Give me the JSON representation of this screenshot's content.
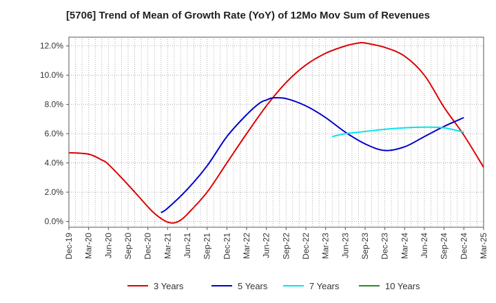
{
  "chart_data": {
    "type": "line",
    "title": "[5706]  Trend of Mean of Growth Rate (YoY) of 12Mo Mov Sum of Revenues",
    "xlabel": "",
    "ylabel": "",
    "x_ticks": [
      "Dec-19",
      "Mar-20",
      "Jun-20",
      "Sep-20",
      "Dec-20",
      "Mar-21",
      "Jun-21",
      "Sep-21",
      "Dec-21",
      "Mar-22",
      "Jun-22",
      "Sep-22",
      "Dec-22",
      "Mar-23",
      "Jun-23",
      "Sep-23",
      "Dec-23",
      "Mar-24",
      "Jun-24",
      "Sep-24",
      "Dec-24",
      "Mar-25"
    ],
    "y_ticks": [
      "0.0%",
      "2.0%",
      "4.0%",
      "6.0%",
      "8.0%",
      "10.0%",
      "12.0%"
    ],
    "y_tick_values": [
      0,
      2,
      4,
      6,
      8,
      10,
      12
    ],
    "ylim": [
      -0.4,
      12.6
    ],
    "x_index_range": [
      0,
      63
    ],
    "grid": true,
    "legend_position": "bottom",
    "series": [
      {
        "name": "3 Years",
        "color": "#dd0000",
        "points": [
          [
            0,
            4.7
          ],
          [
            3,
            4.6
          ],
          [
            5,
            4.2
          ],
          [
            6,
            3.9
          ],
          [
            9,
            2.5
          ],
          [
            12,
            1.0
          ],
          [
            13,
            0.55
          ],
          [
            14,
            0.2
          ],
          [
            15,
            -0.05
          ],
          [
            16,
            -0.1
          ],
          [
            17,
            0.1
          ],
          [
            18,
            0.5
          ],
          [
            21,
            2.0
          ],
          [
            24,
            4.0
          ],
          [
            27,
            6.0
          ],
          [
            30,
            7.9
          ],
          [
            33,
            9.5
          ],
          [
            36,
            10.7
          ],
          [
            39,
            11.5
          ],
          [
            42,
            12.0
          ],
          [
            44,
            12.2
          ],
          [
            45,
            12.2
          ],
          [
            48,
            11.9
          ],
          [
            51,
            11.3
          ],
          [
            54,
            10.0
          ],
          [
            57,
            7.8
          ],
          [
            60,
            5.9
          ],
          [
            63,
            3.7
          ]
        ]
      },
      {
        "name": "5 Years",
        "color": "#0000cc",
        "points": [
          [
            14,
            0.6
          ],
          [
            15,
            0.9
          ],
          [
            18,
            2.2
          ],
          [
            21,
            3.8
          ],
          [
            24,
            5.8
          ],
          [
            27,
            7.3
          ],
          [
            29,
            8.1
          ],
          [
            30,
            8.3
          ],
          [
            31,
            8.45
          ],
          [
            33,
            8.4
          ],
          [
            36,
            7.9
          ],
          [
            39,
            7.1
          ],
          [
            42,
            6.1
          ],
          [
            45,
            5.3
          ],
          [
            48,
            4.85
          ],
          [
            51,
            5.1
          ],
          [
            54,
            5.8
          ],
          [
            57,
            6.5
          ],
          [
            60,
            7.1
          ]
        ]
      },
      {
        "name": "7 Years",
        "color": "#00e5ee",
        "points": [
          [
            40,
            5.8
          ],
          [
            42,
            6.0
          ],
          [
            45,
            6.15
          ],
          [
            48,
            6.3
          ],
          [
            51,
            6.4
          ],
          [
            54,
            6.45
          ],
          [
            57,
            6.4
          ],
          [
            60,
            6.1
          ]
        ]
      },
      {
        "name": "10 Years",
        "color": "#228b22",
        "points": []
      }
    ]
  }
}
